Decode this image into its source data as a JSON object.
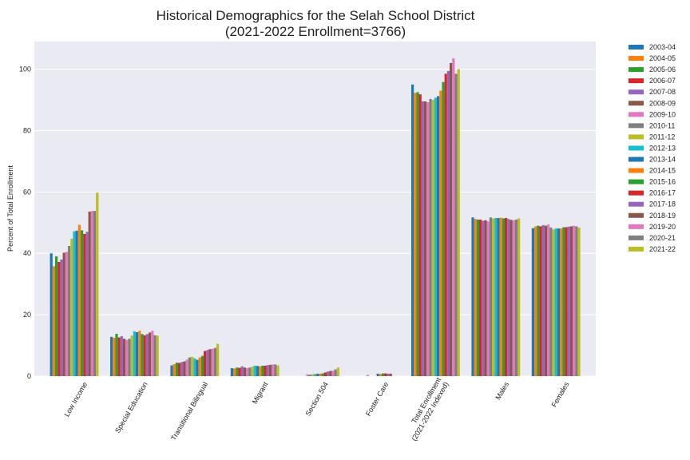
{
  "chart_data": {
    "type": "bar",
    "title_line1": "Historical Demographics for the Selah School District",
    "title_line2": "(2021-2022 Enrollment=3766)",
    "ylabel": "Percent of Total Enrollment",
    "xlabel": "",
    "ylim": [
      0,
      109
    ],
    "yticks": [
      0,
      20,
      40,
      60,
      80,
      100
    ],
    "grid": true,
    "legend_position": "right",
    "background": "#eaeaf2",
    "categories": [
      [
        "Low Income"
      ],
      [
        "Special Education"
      ],
      [
        "Transitional Bilingual"
      ],
      [
        "Migrant"
      ],
      [
        "Section 504"
      ],
      [
        "Foster Care"
      ],
      [
        "Total Enrollment",
        "(2021-2022 Indexed)"
      ],
      [
        "Males"
      ],
      [
        "Females"
      ]
    ],
    "series": [
      {
        "name": "2003-04",
        "color": "#1f77b4",
        "values": [
          40.0,
          12.8,
          3.5,
          2.6,
          null,
          null,
          95.0,
          51.7,
          48.2
        ]
      },
      {
        "name": "2004-05",
        "color": "#ff7f0e",
        "values": [
          35.8,
          12.5,
          3.9,
          2.5,
          null,
          null,
          92.3,
          51.2,
          48.8
        ]
      },
      {
        "name": "2005-06",
        "color": "#2ca02c",
        "values": [
          39.0,
          13.8,
          4.4,
          2.8,
          null,
          null,
          92.5,
          51.0,
          49.0
        ]
      },
      {
        "name": "2006-07",
        "color": "#d62728",
        "values": [
          37.2,
          12.6,
          4.3,
          2.7,
          null,
          null,
          91.8,
          51.0,
          48.8
        ]
      },
      {
        "name": "2007-08",
        "color": "#9467bd",
        "values": [
          38.0,
          13.0,
          4.6,
          3.2,
          null,
          null,
          89.5,
          50.6,
          49.2
        ]
      },
      {
        "name": "2008-09",
        "color": "#8c564b",
        "values": [
          40.2,
          12.2,
          4.8,
          2.8,
          null,
          null,
          89.5,
          50.8,
          49.0
        ]
      },
      {
        "name": "2009-10",
        "color": "#e377c2",
        "values": [
          40.5,
          11.8,
          5.4,
          2.6,
          0.6,
          0.4,
          89.2,
          50.4,
          49.4
        ]
      },
      {
        "name": "2010-11",
        "color": "#7f7f7f",
        "values": [
          42.4,
          12.2,
          6.1,
          2.8,
          0.5,
          null,
          90.3,
          51.7,
          48.4
        ]
      },
      {
        "name": "2011-12",
        "color": "#bcbd22",
        "values": [
          44.8,
          13.2,
          6.3,
          3.1,
          0.6,
          null,
          90.0,
          51.4,
          47.8
        ]
      },
      {
        "name": "2012-13",
        "color": "#17becf",
        "values": [
          47.2,
          14.6,
          5.8,
          3.4,
          0.7,
          null,
          90.7,
          51.5,
          48.1
        ]
      },
      {
        "name": "2013-14",
        "color": "#1f77b4",
        "values": [
          47.4,
          14.3,
          5.3,
          3.3,
          0.8,
          0.8,
          91.2,
          51.5,
          48.1
        ]
      },
      {
        "name": "2014-15",
        "color": "#ff7f0e",
        "values": [
          49.3,
          14.8,
          6.1,
          3.2,
          0.8,
          0.7,
          93.0,
          51.6,
          48.1
        ]
      },
      {
        "name": "2015-16",
        "color": "#2ca02c",
        "values": [
          47.5,
          13.7,
          6.6,
          3.4,
          0.9,
          0.9,
          95.8,
          51.4,
          48.5
        ]
      },
      {
        "name": "2016-17",
        "color": "#d62728",
        "values": [
          46.3,
          13.3,
          8.2,
          3.4,
          1.2,
          0.9,
          98.5,
          51.5,
          48.5
        ]
      },
      {
        "name": "2017-18",
        "color": "#9467bd",
        "values": [
          47.0,
          13.7,
          8.5,
          3.6,
          1.5,
          0.8,
          99.4,
          51.2,
          48.7
        ]
      },
      {
        "name": "2018-19",
        "color": "#8c564b",
        "values": [
          53.6,
          14.2,
          8.8,
          3.7,
          1.7,
          0.8,
          102.0,
          50.9,
          48.8
        ]
      },
      {
        "name": "2019-20",
        "color": "#e377c2",
        "values": [
          53.8,
          14.8,
          8.9,
          3.8,
          1.8,
          null,
          103.5,
          50.8,
          49.0
        ]
      },
      {
        "name": "2020-21",
        "color": "#7f7f7f",
        "values": [
          53.8,
          13.3,
          9.2,
          3.8,
          2.2,
          null,
          98.5,
          51.0,
          48.8
        ]
      },
      {
        "name": "2021-22",
        "color": "#bcbd22",
        "values": [
          59.8,
          13.2,
          10.5,
          3.5,
          2.8,
          null,
          100.0,
          51.4,
          48.4
        ]
      }
    ]
  }
}
